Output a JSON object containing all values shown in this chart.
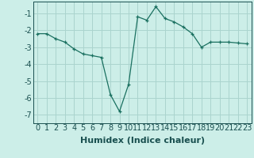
{
  "x": [
    0,
    1,
    2,
    3,
    4,
    5,
    6,
    7,
    8,
    9,
    10,
    11,
    12,
    13,
    14,
    15,
    16,
    17,
    18,
    19,
    20,
    21,
    22,
    23
  ],
  "y": [
    -2.2,
    -2.2,
    -2.5,
    -2.7,
    -3.1,
    -3.4,
    -3.5,
    -3.6,
    -5.8,
    -6.8,
    -5.2,
    -1.2,
    -1.4,
    -0.6,
    -1.3,
    -1.5,
    -1.8,
    -2.2,
    -3.0,
    -2.7,
    -2.7,
    -2.7,
    -2.75,
    -2.8
  ],
  "xlabel": "Humidex (Indice chaleur)",
  "ylim": [
    -7.5,
    -0.3
  ],
  "xlim": [
    -0.5,
    23.5
  ],
  "yticks": [
    -7,
    -6,
    -5,
    -4,
    -3,
    -2,
    -1
  ],
  "xticks": [
    0,
    1,
    2,
    3,
    4,
    5,
    6,
    7,
    8,
    9,
    10,
    11,
    12,
    13,
    14,
    15,
    16,
    17,
    18,
    19,
    20,
    21,
    22,
    23
  ],
  "line_color": "#1a7060",
  "marker": "+",
  "bg_color": "#cceee8",
  "grid_color": "#aad4ce",
  "xlabel_fontsize": 8,
  "tick_fontsize": 7,
  "label_color": "#1a5050"
}
